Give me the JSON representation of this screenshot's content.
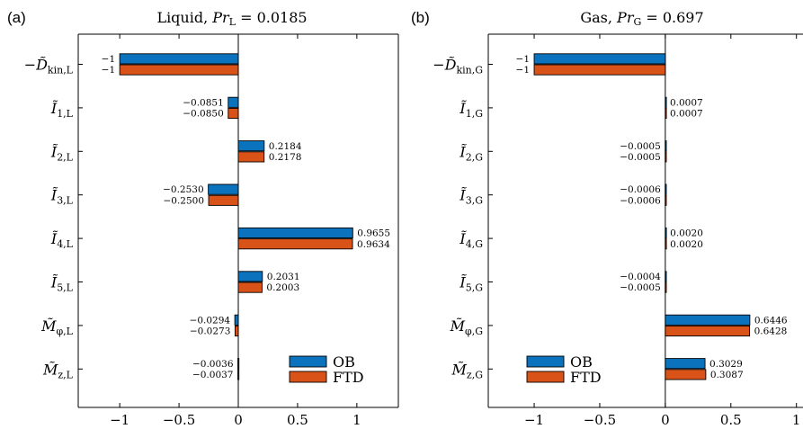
{
  "figure": {
    "series_colors": {
      "OB": "#0b72bd",
      "FTD": "#d95319"
    },
    "legend": {
      "labels": [
        "OB",
        "FTD"
      ]
    }
  },
  "chart_data": [
    {
      "type": "bar",
      "orientation": "horizontal",
      "panel_label": "(a)",
      "title_text": "Liquid, ",
      "title_math": {
        "main": "Pr",
        "sub": "L",
        "rest": " = 0.0185"
      },
      "xlim": [
        -1.35,
        1.35
      ],
      "xticks": [
        -1,
        -0.5,
        0,
        0.5,
        1
      ],
      "xtick_labels": [
        "−1",
        "−0.5",
        "0",
        "0.5",
        "1"
      ],
      "legend_position": "bottom-right",
      "categories": [
        {
          "sym": "−D̃",
          "sub": "kin,L"
        },
        {
          "sym": "Ĩ",
          "sub": "1,L"
        },
        {
          "sym": "Ĩ",
          "sub": "2,L"
        },
        {
          "sym": "Ĩ",
          "sub": "3,L"
        },
        {
          "sym": "Ĩ",
          "sub": "4,L"
        },
        {
          "sym": "Ĩ",
          "sub": "5,L"
        },
        {
          "sym": "M̃",
          "sub": "φ,L"
        },
        {
          "sym": "M̃",
          "sub": "z,L"
        }
      ],
      "series": [
        {
          "name": "OB",
          "values": [
            -1,
            -0.0851,
            0.2184,
            -0.253,
            0.9655,
            0.2031,
            -0.0294,
            -0.0036
          ],
          "labels": [
            "−1",
            "−0.0851",
            "0.2184",
            "−0.2530",
            "0.9655",
            "0.2031",
            "−0.0294",
            "−0.0036"
          ]
        },
        {
          "name": "FTD",
          "values": [
            -1,
            -0.085,
            0.2178,
            -0.25,
            0.9634,
            0.2003,
            -0.0273,
            -0.0037
          ],
          "labels": [
            "−1",
            "−0.0850",
            "0.2178",
            "−0.2500",
            "0.9634",
            "0.2003",
            "−0.0273",
            "−0.0037"
          ]
        }
      ]
    },
    {
      "type": "bar",
      "orientation": "horizontal",
      "panel_label": "(b)",
      "title_text": "Gas, ",
      "title_math": {
        "main": "Pr",
        "sub": "G",
        "rest": " = 0.697"
      },
      "xlim": [
        -1.35,
        1.05
      ],
      "xticks": [
        -1,
        -0.5,
        0,
        0.5,
        1
      ],
      "xtick_labels": [
        "−1",
        "−0.5",
        "0",
        "0.5",
        "1"
      ],
      "legend_position": "bottom-left",
      "categories": [
        {
          "sym": "−D̃",
          "sub": "kin,G"
        },
        {
          "sym": "Ĩ",
          "sub": "1,G"
        },
        {
          "sym": "Ĩ",
          "sub": "2,G"
        },
        {
          "sym": "Ĩ",
          "sub": "3,G"
        },
        {
          "sym": "Ĩ",
          "sub": "4,G"
        },
        {
          "sym": "Ĩ",
          "sub": "5,G"
        },
        {
          "sym": "M̃",
          "sub": "φ,G"
        },
        {
          "sym": "M̃",
          "sub": "z,G"
        }
      ],
      "series": [
        {
          "name": "OB",
          "values": [
            -1,
            0.0007,
            -0.0005,
            -0.0006,
            0.002,
            -0.0004,
            0.6446,
            0.3029
          ],
          "labels": [
            "−1",
            "0.0007",
            "−0.0005",
            "−0.0006",
            "0.0020",
            "−0.0004",
            "0.6446",
            "0.3029"
          ]
        },
        {
          "name": "FTD",
          "values": [
            -1,
            0.0007,
            -0.0005,
            -0.0006,
            0.002,
            -0.0005,
            0.6428,
            0.3087
          ],
          "labels": [
            "−1",
            "0.0007",
            "−0.0005",
            "−0.0006",
            "0.0020",
            "−0.0005",
            "0.6428",
            "0.3087"
          ]
        }
      ]
    }
  ]
}
